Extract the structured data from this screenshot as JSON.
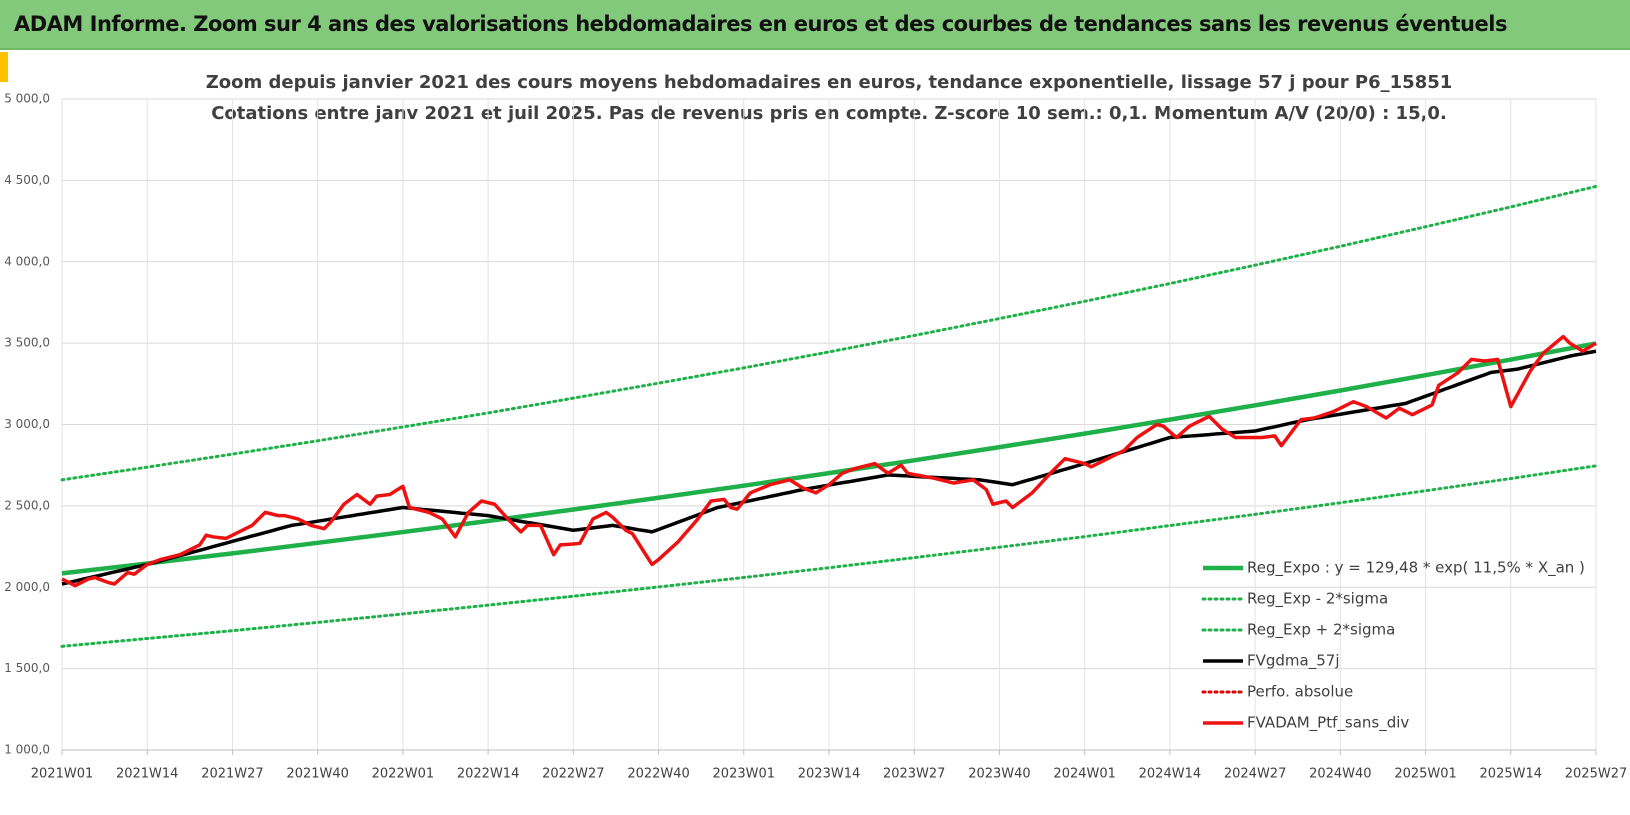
{
  "header": {
    "title": "ADAM Informe. Zoom sur 4 ans des valorisations hebdomadaires en euros et des courbes de tendances sans les revenus éventuels"
  },
  "chart_data": {
    "type": "line",
    "title": "Zoom depuis janvier 2021 des cours moyens hebdomadaires  en euros, tendance exponentielle, lissage 57 j pour P6_15851",
    "subtitle": "Cotations entre janv 2021 et juil 2025. Pas de revenus pris en compte. Z-score 10 sem.: 0,1. Momentum A/V (20/0) : 15,0.",
    "categories": [
      "2021W01",
      null,
      null,
      null,
      null,
      null,
      null,
      null,
      null,
      null,
      null,
      null,
      null,
      "2021W14",
      null,
      null,
      null,
      null,
      null,
      null,
      null,
      null,
      null,
      null,
      null,
      null,
      "2021W27",
      null,
      null,
      null,
      null,
      null,
      null,
      null,
      null,
      null,
      null,
      null,
      null,
      "2021W40",
      null,
      null,
      null,
      null,
      null,
      null,
      null,
      null,
      null,
      null,
      null,
      null,
      "2022W01",
      null,
      null,
      null,
      null,
      null,
      null,
      null,
      null,
      null,
      null,
      null,
      null,
      "2022W14",
      null,
      null,
      null,
      null,
      null,
      null,
      null,
      null,
      null,
      null,
      null,
      null,
      "2022W27",
      null,
      null,
      null,
      null,
      null,
      null,
      null,
      null,
      null,
      null,
      null,
      null,
      "2022W40",
      null,
      null,
      null,
      null,
      null,
      null,
      null,
      null,
      null,
      null,
      null,
      null,
      "2023W01",
      null,
      null,
      null,
      null,
      null,
      null,
      null,
      null,
      null,
      null,
      null,
      null,
      "2023W14",
      null,
      null,
      null,
      null,
      null,
      null,
      null,
      null,
      null,
      null,
      null,
      null,
      "2023W27",
      null,
      null,
      null,
      null,
      null,
      null,
      null,
      null,
      null,
      null,
      null,
      null,
      "2023W40",
      null,
      null,
      null,
      null,
      null,
      null,
      null,
      null,
      null,
      null,
      null,
      null,
      "2024W01",
      null,
      null,
      null,
      null,
      null,
      null,
      null,
      null,
      null,
      null,
      null,
      null,
      "2024W14",
      null,
      null,
      null,
      null,
      null,
      null,
      null,
      null,
      null,
      null,
      null,
      null,
      "2024W27",
      null,
      null,
      null,
      null,
      null,
      null,
      null,
      null,
      null,
      null,
      null,
      null,
      "2024W40",
      null,
      null,
      null,
      null,
      null,
      null,
      null,
      null,
      null,
      null,
      null,
      null,
      "2025W01",
      null,
      null,
      null,
      null,
      null,
      null,
      null,
      null,
      null,
      null,
      null,
      null,
      "2025W14",
      null,
      null,
      null,
      null,
      null,
      null,
      null,
      null,
      null,
      null,
      null,
      null,
      "2025W27"
    ],
    "ylim": [
      1000,
      5000
    ],
    "yticks": [
      {
        "value": 1000,
        "label": "1 000,0"
      },
      {
        "value": 1500,
        "label": "1 500,0"
      },
      {
        "value": 2000,
        "label": "2 000,0"
      },
      {
        "value": 2500,
        "label": "2 500,0"
      },
      {
        "value": 3000,
        "label": "3 000,0"
      },
      {
        "value": 3500,
        "label": "3 500,0"
      },
      {
        "value": 4000,
        "label": "4 000,0"
      },
      {
        "value": 4500,
        "label": "4 500,0"
      },
      {
        "value": 5000,
        "label": "5 000,0"
      }
    ],
    "grid": true,
    "legend": "bottom-right",
    "series": [
      {
        "name": "Reg_Expo : y = 129,48 * exp( 11,5% *  X_an )",
        "color": "#1fb04a",
        "dash": false,
        "x": [
          "2021W01",
          "2021W14",
          "2021W27",
          "2021W40",
          "2022W01",
          "2022W14",
          "2022W27",
          "2022W40",
          "2023W01",
          "2023W14",
          "2023W27",
          "2023W40",
          "2024W01",
          "2024W14",
          "2024W27",
          "2024W40",
          "2025W01",
          "2025W14",
          "2025W27"
        ],
        "values": [
          2085,
          2146,
          2208,
          2273,
          2339,
          2407,
          2478,
          2550,
          2624,
          2701,
          2780,
          2861,
          2944,
          3030,
          3118,
          3209,
          3303,
          3399,
          3498
        ]
      },
      {
        "name": "Reg_Exp - 2*sigma",
        "color": "#1fb04a",
        "dash": true,
        "x": [
          "2021W01",
          "2021W14",
          "2021W27",
          "2021W40",
          "2022W01",
          "2022W14",
          "2022W27",
          "2022W40",
          "2023W01",
          "2023W14",
          "2023W27",
          "2023W40",
          "2024W01",
          "2024W14",
          "2024W27",
          "2024W40",
          "2025W01",
          "2025W14",
          "2025W27"
        ],
        "values": [
          1637,
          1685,
          1733,
          1784,
          1836,
          1890,
          1945,
          2002,
          2060,
          2120,
          2182,
          2246,
          2311,
          2379,
          2448,
          2519,
          2593,
          2668,
          2746
        ]
      },
      {
        "name": "Reg_Exp + 2*sigma",
        "color": "#1fb04a",
        "dash": true,
        "x": [
          "2021W01",
          "2021W14",
          "2021W27",
          "2021W40",
          "2022W01",
          "2022W14",
          "2022W27",
          "2022W40",
          "2023W01",
          "2023W14",
          "2023W27",
          "2023W40",
          "2024W01",
          "2024W14",
          "2024W27",
          "2024W40",
          "2025W01",
          "2025W14",
          "2025W27"
        ],
        "values": [
          2660,
          2738,
          2818,
          2900,
          2985,
          3071,
          3162,
          3254,
          3348,
          3446,
          3547,
          3651,
          3757,
          3866,
          3979,
          4095,
          4215,
          4337,
          4463
        ]
      },
      {
        "name": "FVgdma_57j",
        "color": "#000000",
        "dash": false,
        "values": [
          2020,
          2029,
          2038,
          2048,
          2057,
          2066,
          2075,
          2085,
          2094,
          2103,
          2112,
          2122,
          2131,
          2140,
          2151,
          2162,
          2173,
          2184,
          2195,
          2205,
          2216,
          2227,
          2238,
          2249,
          2260,
          2271,
          2282,
          2293,
          2304,
          2315,
          2325,
          2336,
          2347,
          2358,
          2369,
          2380,
          2386,
          2393,
          2399,
          2406,
          2412,
          2419,
          2425,
          2432,
          2438,
          2445,
          2451,
          2458,
          2464,
          2471,
          2477,
          2484,
          2490,
          2486,
          2482,
          2478,
          2475,
          2471,
          2467,
          2463,
          2459,
          2455,
          2452,
          2448,
          2444,
          2440,
          2433,
          2426,
          2419,
          2412,
          2405,
          2398,
          2392,
          2385,
          2378,
          2371,
          2364,
          2357,
          2350,
          2355,
          2360,
          2365,
          2370,
          2375,
          2380,
          2373,
          2367,
          2360,
          2353,
          2347,
          2340,
          2355,
          2370,
          2385,
          2400,
          2415,
          2430,
          2445,
          2460,
          2475,
          2490,
          2498,
          2507,
          2515,
          2524,
          2532,
          2541,
          2549,
          2558,
          2566,
          2575,
          2583,
          2592,
          2600,
          2607,
          2614,
          2621,
          2628,
          2635,
          2642,
          2648,
          2655,
          2662,
          2669,
          2676,
          2683,
          2690,
          2688,
          2686,
          2684,
          2681,
          2679,
          2677,
          2675,
          2673,
          2671,
          2669,
          2666,
          2664,
          2662,
          2660,
          2654,
          2648,
          2642,
          2636,
          2630,
          2642,
          2654,
          2665,
          2677,
          2689,
          2701,
          2713,
          2725,
          2736,
          2748,
          2760,
          2772,
          2785,
          2797,
          2809,
          2822,
          2834,
          2846,
          2858,
          2871,
          2883,
          2895,
          2908,
          2920,
          2923,
          2926,
          2929,
          2932,
          2935,
          2938,
          2942,
          2945,
          2948,
          2951,
          2954,
          2957,
          2960,
          2969,
          2978,
          2986,
          2995,
          3004,
          3013,
          3021,
          3030,
          3037,
          3043,
          3050,
          3057,
          3063,
          3070,
          3077,
          3083,
          3090,
          3097,
          3103,
          3110,
          3117,
          3123,
          3130,
          3145,
          3159,
          3174,
          3188,
          3203,
          3218,
          3232,
          3247,
          3262,
          3276,
          3291,
          3305,
          3320,
          3325,
          3330,
          3335,
          3340,
          3350,
          3360,
          3370,
          3380,
          3390,
          3400,
          3410,
          3420,
          3428,
          3435,
          3443,
          3450
        ]
      },
      {
        "name": "Perfo. absolue",
        "color": "#e00000",
        "dash": true
      },
      {
        "name": "FVADAM_Ptf_sans_div",
        "color": "#ee1111",
        "dash": false,
        "values": [
          2050,
          2030,
          2010,
          2030,
          2050,
          2060,
          2045,
          2030,
          2020,
          2055,
          2090,
          2080,
          2110,
          2140,
          2155,
          2170,
          2180,
          2190,
          2200,
          2220,
          2240,
          2260,
          2320,
          2310,
          2305,
          2300,
          2320,
          2340,
          2360,
          2380,
          2420,
          2460,
          2450,
          2440,
          2440,
          2430,
          2420,
          2400,
          2380,
          2370,
          2360,
          2400,
          2455,
          2510,
          2540,
          2570,
          2540,
          2510,
          2560,
          2565,
          2570,
          2595,
          2620,
          2490,
          2480,
          2470,
          2460,
          2440,
          2420,
          2365,
          2310,
          2385,
          2460,
          2495,
          2530,
          2520,
          2510,
          2465,
          2420,
          2380,
          2340,
          2380,
          2380,
          2380,
          2290,
          2200,
          2260,
          2263,
          2266,
          2270,
          2345,
          2420,
          2440,
          2460,
          2430,
          2390,
          2350,
          2330,
          2267,
          2203,
          2140,
          2170,
          2207,
          2243,
          2280,
          2327,
          2373,
          2420,
          2475,
          2530,
          2535,
          2540,
          2490,
          2480,
          2530,
          2580,
          2597,
          2613,
          2630,
          2640,
          2650,
          2660,
          2635,
          2610,
          2595,
          2580,
          2605,
          2630,
          2665,
          2700,
          2715,
          2730,
          2740,
          2750,
          2760,
          2730,
          2700,
          2725,
          2750,
          2700,
          2692,
          2685,
          2677,
          2670,
          2660,
          2650,
          2640,
          2647,
          2653,
          2660,
          2630,
          2600,
          2510,
          2520,
          2530,
          2490,
          2520,
          2550,
          2580,
          2623,
          2667,
          2710,
          2750,
          2790,
          2780,
          2770,
          2760,
          2740,
          2760,
          2780,
          2800,
          2820,
          2840,
          2880,
          2920,
          2947,
          2973,
          3000,
          2990,
          2955,
          2920,
          2955,
          2990,
          3010,
          3030,
          3050,
          3010,
          2970,
          2945,
          2920,
          2920,
          2920,
          2920,
          2920,
          2925,
          2930,
          2870,
          2923,
          2977,
          3030,
          3035,
          3040,
          3053,
          3067,
          3080,
          3100,
          3120,
          3140,
          3125,
          3110,
          3087,
          3063,
          3040,
          3070,
          3100,
          3080,
          3060,
          3080,
          3100,
          3120,
          3240,
          3267,
          3293,
          3320,
          3360,
          3400,
          3395,
          3390,
          3395,
          3400,
          3255,
          3110,
          3183,
          3257,
          3330,
          3385,
          3440,
          3473,
          3507,
          3540,
          3500,
          3475,
          3450,
          3475,
          3500
        ]
      }
    ]
  }
}
